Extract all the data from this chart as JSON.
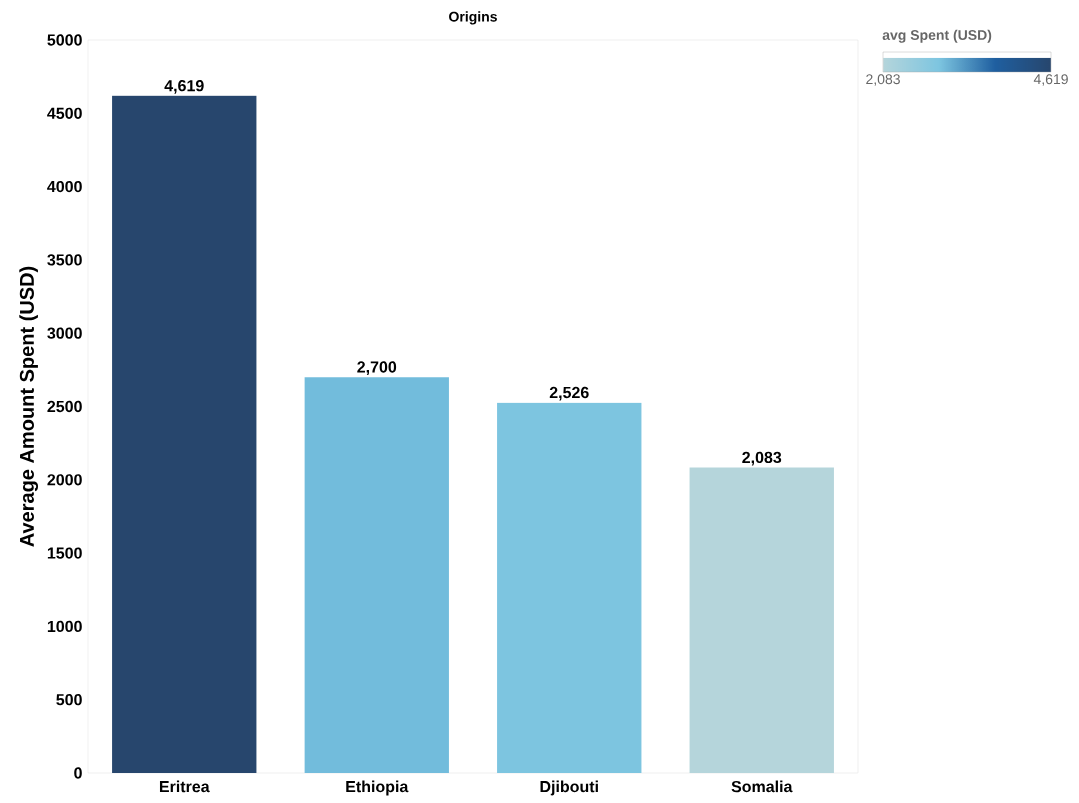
{
  "chart_data": {
    "type": "bar",
    "title": "Origins",
    "ylabel": "Average Amount Spent (USD)",
    "categories": [
      "Eritrea",
      "Ethiopia",
      "Djibouti",
      "Somalia"
    ],
    "values": [
      4619,
      2700,
      2526,
      2083
    ],
    "colors": [
      "#27466d",
      "#72bcdc",
      "#7dc5e0",
      "#b5d5db"
    ],
    "value_labels": [
      "4,619",
      "2,700",
      "2,526",
      "2,083"
    ],
    "ylim": [
      0,
      5000
    ],
    "yticks": [
      0,
      500,
      1000,
      1500,
      2000,
      2500,
      3000,
      3500,
      4000,
      4500,
      5000
    ],
    "clabel": "avg Spent (USD)",
    "clim": [
      2083,
      4619
    ],
    "cticks": [
      {
        "value": 2083,
        "label": "2,083"
      },
      {
        "value": 4619,
        "label": "4,619"
      }
    ]
  }
}
